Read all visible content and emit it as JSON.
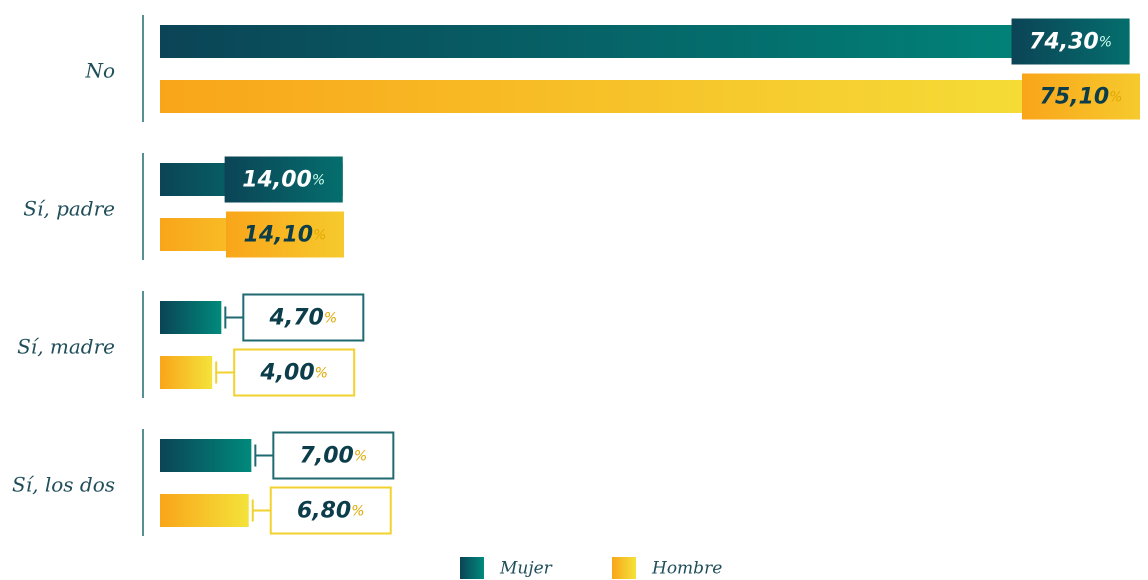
{
  "chart_data": {
    "type": "hbar",
    "categories": [
      "No",
      "Sí, padre",
      "Sí, madre",
      "Sí, los dos"
    ],
    "series": [
      {
        "name": "Mujer",
        "colors": [
          "#0b4456",
          "#008a7c"
        ],
        "values": [
          74.3,
          14.0,
          4.7,
          7.0
        ],
        "value_labels": [
          "74,30%",
          "14,00%",
          "4,70%",
          "7,00%"
        ]
      },
      {
        "name": "Hombre",
        "colors": [
          "#f9a51a",
          "#f4e33a"
        ],
        "values": [
          75.1,
          14.1,
          4.0,
          6.8
        ],
        "value_labels": [
          "75,10%",
          "14,10%",
          "4,00%",
          "6,80%"
        ]
      }
    ],
    "legend": "bottom"
  }
}
